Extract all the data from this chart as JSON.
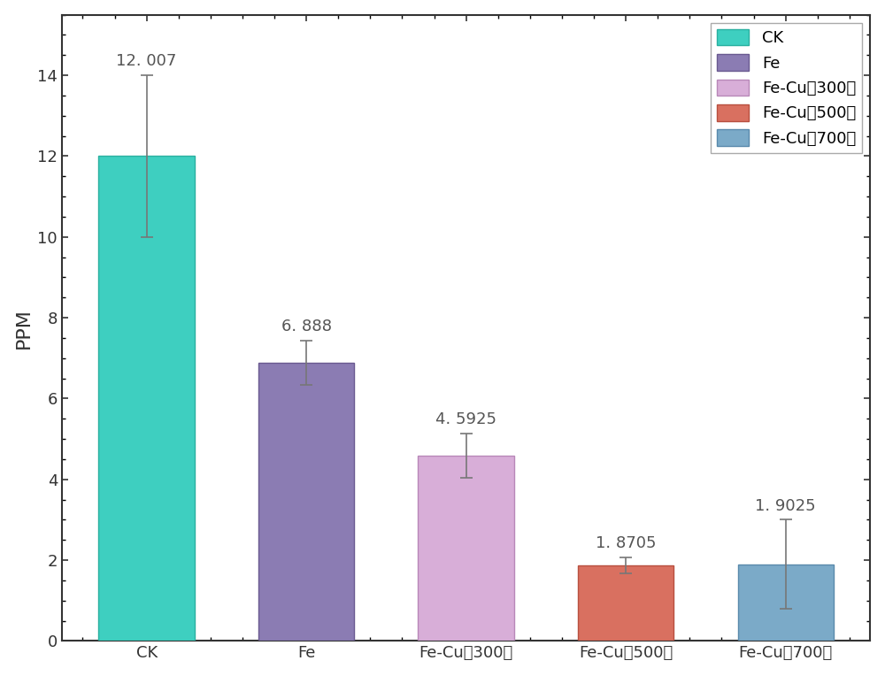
{
  "categories": [
    "CK",
    "Fe",
    "Fe-Cu（300）",
    "Fe-Cu（500）",
    "Fe-Cu（700）"
  ],
  "values": [
    12.007,
    6.888,
    4.5925,
    1.8705,
    1.9025
  ],
  "errors_upper": [
    2.0,
    0.55,
    0.55,
    0.2,
    1.1
  ],
  "errors_lower": [
    2.0,
    0.55,
    0.55,
    0.2,
    1.1
  ],
  "bar_colors": [
    "#3ecfc0",
    "#8b7cb3",
    "#d8aed8",
    "#d97060",
    "#7baac8"
  ],
  "bar_edgecolors": [
    "#2ab0a0",
    "#6a5a90",
    "#b888b8",
    "#b85040",
    "#5a8aac"
  ],
  "legend_labels": [
    "CK",
    "Fe",
    "Fe-Cu（300）",
    "Fe-Cu（500）",
    "Fe-Cu（700）"
  ],
  "xlabel": "",
  "ylabel": "PPM",
  "ylim": [
    0,
    15.5
  ],
  "yticks": [
    0,
    2,
    4,
    6,
    8,
    10,
    12,
    14
  ],
  "value_labels": [
    "12. 007",
    "6. 888",
    "4. 5925",
    "1. 8705",
    "1. 9025"
  ],
  "title": "",
  "background_color": "#ffffff",
  "bar_width": 0.6,
  "error_color": "#777777",
  "label_fontsize": 14,
  "tick_fontsize": 13,
  "legend_fontsize": 13,
  "text_color": "#555555",
  "axis_color": "#333333"
}
